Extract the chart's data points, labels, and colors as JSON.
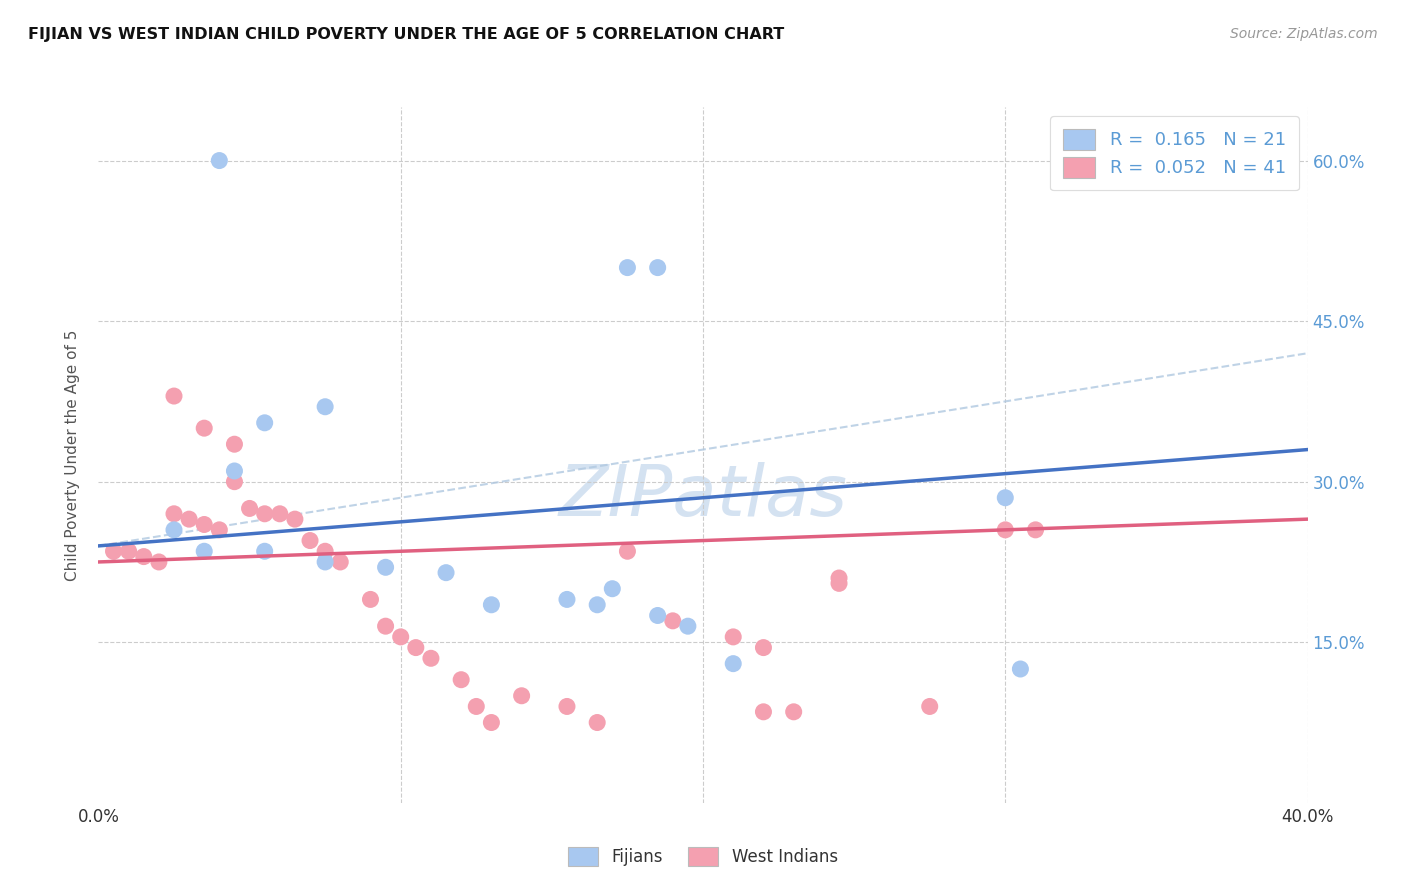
{
  "title": "FIJIAN VS WEST INDIAN CHILD POVERTY UNDER THE AGE OF 5 CORRELATION CHART",
  "source": "Source: ZipAtlas.com",
  "ylabel_label": "Child Poverty Under the Age of 5",
  "xlim": [
    0.0,
    0.4
  ],
  "ylim": [
    0.0,
    0.65
  ],
  "fijian_color": "#a8c8f0",
  "fijian_line_color": "#4472c4",
  "west_indian_color": "#f4a0b0",
  "west_indian_line_color": "#e06080",
  "dashed_line_color": "#b0c8e0",
  "fijian_R": 0.165,
  "fijian_N": 21,
  "west_indian_R": 0.052,
  "west_indian_N": 41,
  "fijian_scatter_x": [
    0.04,
    0.175,
    0.185,
    0.075,
    0.055,
    0.045,
    0.025,
    0.035,
    0.055,
    0.075,
    0.095,
    0.115,
    0.13,
    0.155,
    0.165,
    0.17,
    0.185,
    0.195,
    0.21,
    0.305,
    0.3
  ],
  "fijian_scatter_y": [
    0.6,
    0.5,
    0.5,
    0.37,
    0.355,
    0.31,
    0.255,
    0.235,
    0.235,
    0.225,
    0.22,
    0.215,
    0.185,
    0.19,
    0.185,
    0.2,
    0.175,
    0.165,
    0.13,
    0.125,
    0.285
  ],
  "west_indian_scatter_x": [
    0.005,
    0.01,
    0.015,
    0.02,
    0.025,
    0.03,
    0.035,
    0.04,
    0.045,
    0.05,
    0.055,
    0.06,
    0.065,
    0.07,
    0.075,
    0.08,
    0.09,
    0.095,
    0.1,
    0.105,
    0.11,
    0.12,
    0.125,
    0.13,
    0.14,
    0.155,
    0.165,
    0.175,
    0.19,
    0.21,
    0.22,
    0.245,
    0.245,
    0.275,
    0.3,
    0.31,
    0.025,
    0.035,
    0.045,
    0.22,
    0.23
  ],
  "west_indian_scatter_y": [
    0.235,
    0.235,
    0.23,
    0.225,
    0.27,
    0.265,
    0.26,
    0.255,
    0.3,
    0.275,
    0.27,
    0.27,
    0.265,
    0.245,
    0.235,
    0.225,
    0.19,
    0.165,
    0.155,
    0.145,
    0.135,
    0.115,
    0.09,
    0.075,
    0.1,
    0.09,
    0.075,
    0.235,
    0.17,
    0.155,
    0.145,
    0.205,
    0.21,
    0.09,
    0.255,
    0.255,
    0.38,
    0.35,
    0.335,
    0.085,
    0.085
  ],
  "fijian_trend_x": [
    0.0,
    0.4
  ],
  "fijian_trend_y": [
    0.24,
    0.33
  ],
  "west_indian_trend_x": [
    0.0,
    0.4
  ],
  "west_indian_trend_y": [
    0.225,
    0.265
  ],
  "dashed_trend_x": [
    0.0,
    0.4
  ],
  "dashed_trend_y": [
    0.24,
    0.42
  ],
  "background_color": "#ffffff",
  "grid_color": "#cccccc",
  "title_color": "#111111",
  "right_axis_color": "#5b9bd5",
  "watermark_color": "#d0dff0"
}
